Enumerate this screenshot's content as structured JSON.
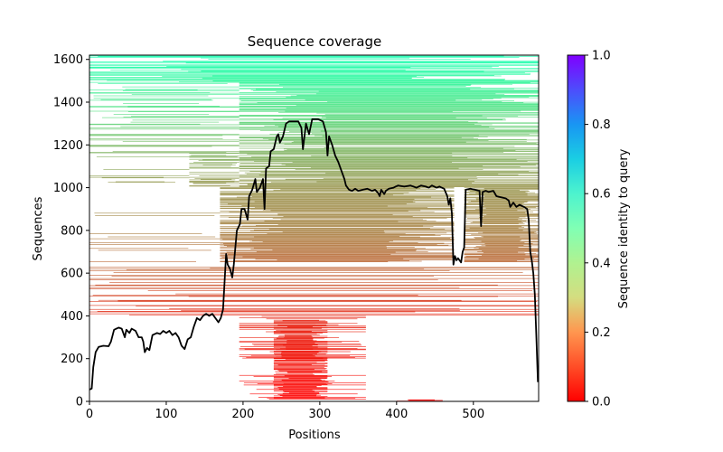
{
  "chart_data": {
    "type": "heatmap",
    "title": "Sequence coverage",
    "xlabel": "Positions",
    "ylabel": "Sequences",
    "xlim": [
      0,
      585
    ],
    "ylim": [
      0,
      1620
    ],
    "xticks": [
      0,
      100,
      200,
      300,
      400,
      500
    ],
    "yticks": [
      0,
      200,
      400,
      600,
      800,
      1000,
      1200,
      1400,
      1600
    ],
    "grid": false,
    "colorbar": {
      "label": "Sequence identity to query",
      "colormap": "rainbow",
      "range": [
        0.0,
        1.0
      ],
      "ticks": [
        "0.0",
        "0.2",
        "0.4",
        "0.6",
        "0.8",
        "1.0"
      ]
    },
    "identity_by_sequence_rank": [
      {
        "seq": 0,
        "identity": 0.0
      },
      {
        "seq": 400,
        "identity": 0.05
      },
      {
        "seq": 600,
        "identity": 0.12
      },
      {
        "seq": 800,
        "identity": 0.17
      },
      {
        "seq": 1000,
        "identity": 0.2
      },
      {
        "seq": 1200,
        "identity": 0.26
      },
      {
        "seq": 1400,
        "identity": 0.36
      },
      {
        "seq": 1620,
        "identity": 0.48
      }
    ],
    "coverage_blocks": [
      {
        "x0": 0,
        "x1": 585,
        "y0": 1490,
        "y1": 1620,
        "density": 0.85
      },
      {
        "x0": 0,
        "x1": 195,
        "y0": 1160,
        "y1": 1490,
        "density": 0.45
      },
      {
        "x0": 195,
        "x1": 585,
        "y0": 1160,
        "y1": 1490,
        "density": 0.95
      },
      {
        "x0": 0,
        "x1": 130,
        "y0": 1000,
        "y1": 1160,
        "density": 0.1
      },
      {
        "x0": 130,
        "x1": 195,
        "y0": 1000,
        "y1": 1160,
        "density": 0.45
      },
      {
        "x0": 195,
        "x1": 585,
        "y0": 1000,
        "y1": 1160,
        "density": 0.97
      },
      {
        "x0": 0,
        "x1": 170,
        "y0": 650,
        "y1": 1000,
        "density": 0.12
      },
      {
        "x0": 170,
        "x1": 475,
        "y0": 650,
        "y1": 1000,
        "density": 0.95
      },
      {
        "x0": 488,
        "x1": 585,
        "y0": 650,
        "y1": 1000,
        "density": 0.95
      },
      {
        "x0": 0,
        "x1": 585,
        "y0": 400,
        "y1": 650,
        "density": 0.35
      },
      {
        "x0": 195,
        "x1": 360,
        "y0": 0,
        "y1": 400,
        "density": 0.35
      },
      {
        "x0": 240,
        "x1": 310,
        "y0": 10,
        "y1": 380,
        "density": 0.9
      },
      {
        "x0": 400,
        "x1": 460,
        "y0": 0,
        "y1": 10,
        "density": 0.8
      }
    ],
    "coverage_line": {
      "name": "coverage",
      "color": "#000000",
      "points": [
        [
          0,
          55
        ],
        [
          3,
          60
        ],
        [
          5,
          160
        ],
        [
          8,
          230
        ],
        [
          12,
          255
        ],
        [
          18,
          260
        ],
        [
          25,
          258
        ],
        [
          28,
          280
        ],
        [
          32,
          335
        ],
        [
          38,
          345
        ],
        [
          42,
          340
        ],
        [
          46,
          300
        ],
        [
          48,
          335
        ],
        [
          52,
          320
        ],
        [
          55,
          340
        ],
        [
          60,
          330
        ],
        [
          64,
          300
        ],
        [
          68,
          300
        ],
        [
          70,
          280
        ],
        [
          72,
          230
        ],
        [
          75,
          250
        ],
        [
          78,
          240
        ],
        [
          82,
          310
        ],
        [
          88,
          320
        ],
        [
          92,
          315
        ],
        [
          96,
          330
        ],
        [
          100,
          320
        ],
        [
          104,
          330
        ],
        [
          108,
          310
        ],
        [
          112,
          320
        ],
        [
          116,
          300
        ],
        [
          120,
          260
        ],
        [
          124,
          245
        ],
        [
          128,
          290
        ],
        [
          132,
          300
        ],
        [
          136,
          350
        ],
        [
          140,
          390
        ],
        [
          144,
          380
        ],
        [
          148,
          400
        ],
        [
          152,
          410
        ],
        [
          156,
          400
        ],
        [
          160,
          410
        ],
        [
          164,
          390
        ],
        [
          168,
          370
        ],
        [
          171,
          390
        ],
        [
          174,
          430
        ],
        [
          176,
          560
        ],
        [
          178,
          690
        ],
        [
          180,
          640
        ],
        [
          183,
          620
        ],
        [
          186,
          580
        ],
        [
          188,
          640
        ],
        [
          192,
          800
        ],
        [
          196,
          830
        ],
        [
          198,
          900
        ],
        [
          202,
          900
        ],
        [
          206,
          850
        ],
        [
          208,
          960
        ],
        [
          212,
          990
        ],
        [
          216,
          1040
        ],
        [
          218,
          980
        ],
        [
          222,
          1000
        ],
        [
          226,
          1040
        ],
        [
          228,
          900
        ],
        [
          230,
          1090
        ],
        [
          234,
          1100
        ],
        [
          236,
          1170
        ],
        [
          240,
          1180
        ],
        [
          244,
          1240
        ],
        [
          246,
          1250
        ],
        [
          248,
          1210
        ],
        [
          252,
          1240
        ],
        [
          256,
          1300
        ],
        [
          260,
          1310
        ],
        [
          266,
          1310
        ],
        [
          272,
          1310
        ],
        [
          276,
          1280
        ],
        [
          278,
          1180
        ],
        [
          282,
          1300
        ],
        [
          286,
          1250
        ],
        [
          290,
          1320
        ],
        [
          298,
          1320
        ],
        [
          304,
          1310
        ],
        [
          308,
          1260
        ],
        [
          310,
          1150
        ],
        [
          312,
          1240
        ],
        [
          316,
          1200
        ],
        [
          320,
          1150
        ],
        [
          324,
          1120
        ],
        [
          328,
          1080
        ],
        [
          332,
          1040
        ],
        [
          334,
          1010
        ],
        [
          338,
          990
        ],
        [
          342,
          985
        ],
        [
          346,
          995
        ],
        [
          350,
          985
        ],
        [
          356,
          990
        ],
        [
          362,
          995
        ],
        [
          368,
          985
        ],
        [
          372,
          990
        ],
        [
          376,
          975
        ],
        [
          378,
          960
        ],
        [
          380,
          990
        ],
        [
          384,
          970
        ],
        [
          386,
          985
        ],
        [
          390,
          995
        ],
        [
          396,
          1000
        ],
        [
          402,
          1010
        ],
        [
          410,
          1005
        ],
        [
          418,
          1010
        ],
        [
          426,
          1000
        ],
        [
          432,
          1010
        ],
        [
          438,
          1005
        ],
        [
          442,
          1000
        ],
        [
          446,
          1010
        ],
        [
          452,
          1000
        ],
        [
          456,
          1005
        ],
        [
          462,
          995
        ],
        [
          466,
          960
        ],
        [
          468,
          920
        ],
        [
          470,
          950
        ],
        [
          472,
          880
        ],
        [
          474,
          640
        ],
        [
          476,
          680
        ],
        [
          478,
          660
        ],
        [
          480,
          670
        ],
        [
          484,
          650
        ],
        [
          486,
          700
        ],
        [
          488,
          720
        ],
        [
          490,
          990
        ],
        [
          496,
          995
        ],
        [
          502,
          990
        ],
        [
          508,
          985
        ],
        [
          510,
          820
        ],
        [
          512,
          980
        ],
        [
          516,
          985
        ],
        [
          520,
          980
        ],
        [
          526,
          985
        ],
        [
          530,
          960
        ],
        [
          536,
          955
        ],
        [
          542,
          950
        ],
        [
          546,
          940
        ],
        [
          548,
          910
        ],
        [
          552,
          930
        ],
        [
          556,
          910
        ],
        [
          560,
          920
        ],
        [
          566,
          910
        ],
        [
          570,
          900
        ],
        [
          572,
          850
        ],
        [
          574,
          700
        ],
        [
          576,
          660
        ],
        [
          578,
          600
        ],
        [
          580,
          500
        ],
        [
          582,
          300
        ],
        [
          584,
          90
        ]
      ]
    }
  }
}
